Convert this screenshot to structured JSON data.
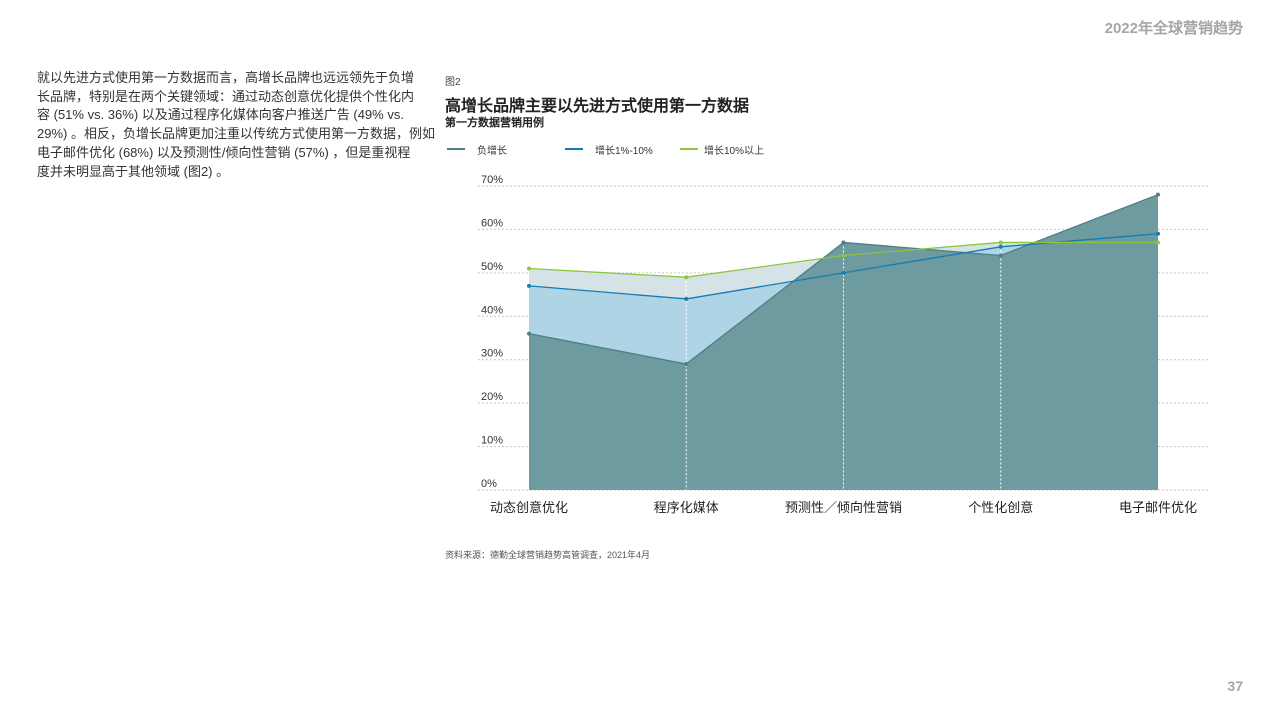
{
  "header": {
    "report_title": "2022年全球营销趋势"
  },
  "body": {
    "paragraph_lines": [
      "就以先进方式使用第一方数据而言，高增长品牌也远远领先于负增",
      "长品牌，特别是在两个关键领域：通过动态创意优化提供个性化内",
      "容 (51% vs. 36%) 以及通过程序化媒体向客户推送广告 (49% vs.",
      "29%) 。相反，负增长品牌更加注重以传统方式使用第一方数据，例如",
      "电子邮件优化 (68%) 以及预测性/倾向性营销 (57%) ，但是重视程",
      "度并未明显高于其他领域 (图2) 。"
    ]
  },
  "chart_data": {
    "type": "area",
    "figure_label": "图2",
    "title": "高增长品牌主要以先进方式使用第一方数据",
    "subtitle": "第一方数据营销用例",
    "categories": [
      "动态创意优化",
      "程序化媒体",
      "预测性／倾向性营销",
      "个性化创意",
      "电子邮件优化"
    ],
    "series": [
      {
        "name": "负增长",
        "values": [
          36,
          29,
          57,
          54,
          68
        ],
        "color": "#4d7f84",
        "fill": "#6d9b9f"
      },
      {
        "name": "增长1%-10%",
        "values": [
          47,
          44,
          50,
          56,
          59
        ],
        "color": "#137db3",
        "fill": "#afd4e6"
      },
      {
        "name": "增长10%以上",
        "values": [
          51,
          49,
          54,
          57,
          57
        ],
        "color": "#8cc63f",
        "fill": "#d5e3e6"
      }
    ],
    "ylim": [
      0,
      70
    ],
    "ytick_labels": [
      "0%",
      "10%",
      "20%",
      "30%",
      "40%",
      "50%",
      "60%",
      "70%"
    ],
    "grid": true,
    "legend_position": "top-left",
    "gridline_color": "#c6c6c6",
    "source": "资料来源：德勤全球营销趋势高管调查，2021年4月"
  },
  "footer": {
    "page_number": "37"
  }
}
